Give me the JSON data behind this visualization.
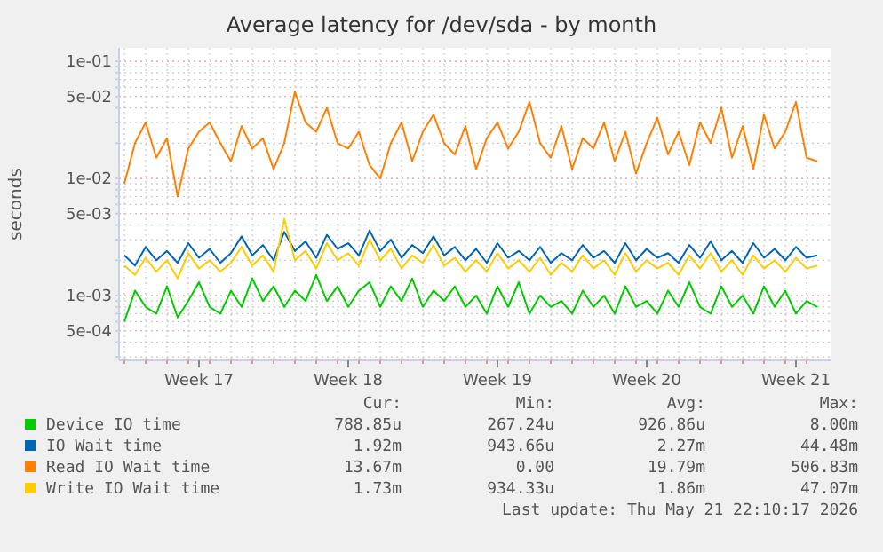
{
  "chart_data": {
    "type": "line",
    "title": "Average latency for /dev/sda - by month",
    "ylabel": "seconds",
    "log": "y",
    "grid": true,
    "legend": "bottom",
    "marker": "none",
    "line_style": "solid",
    "xlim": [
      "2026-04-19T18:00",
      "2026-05-23T04:00"
    ],
    "xticks": [
      {
        "value": "2026-04-20",
        "label": null
      },
      {
        "value": "2026-04-21",
        "label": null
      },
      {
        "value": "2026-04-22",
        "label": null
      },
      {
        "value": "2026-04-23",
        "label": null
      },
      {
        "value": "2026-04-24",
        "label": null
      },
      {
        "value": "2026-04-25",
        "label": null
      },
      {
        "value": "2026-04-26",
        "label": null
      },
      {
        "value": "2026-04-27",
        "label": null
      },
      {
        "value": "2026-04-28",
        "label": null
      },
      {
        "value": "2026-04-29",
        "label": null
      },
      {
        "value": "2026-04-30",
        "label": null
      },
      {
        "value": "2026-05-01",
        "label": null
      },
      {
        "value": "2026-05-02",
        "label": null
      },
      {
        "value": "2026-05-03",
        "label": null
      },
      {
        "value": "2026-05-04",
        "label": null
      },
      {
        "value": "2026-05-05",
        "label": null
      },
      {
        "value": "2026-05-06",
        "label": null
      },
      {
        "value": "2026-05-07",
        "label": null
      },
      {
        "value": "2026-05-08",
        "label": null
      },
      {
        "value": "2026-05-09",
        "label": null
      },
      {
        "value": "2026-05-10",
        "label": null
      },
      {
        "value": "2026-05-11",
        "label": null
      },
      {
        "value": "2026-05-12",
        "label": null
      },
      {
        "value": "2026-05-13",
        "label": null
      },
      {
        "value": "2026-05-14",
        "label": null
      },
      {
        "value": "2026-05-15",
        "label": null
      },
      {
        "value": "2026-05-16",
        "label": null
      },
      {
        "value": "2026-05-17",
        "label": null
      },
      {
        "value": "2026-05-18",
        "label": null
      },
      {
        "value": "2026-05-19",
        "label": null
      },
      {
        "value": "2026-05-20",
        "label": null
      },
      {
        "value": "2026-05-21",
        "label": null
      },
      {
        "value": "2026-05-22",
        "label": null
      },
      {
        "value": "2026-04-23T12:00",
        "label": "Week 17"
      },
      {
        "value": "2026-04-30T12:00",
        "label": "Week 18"
      },
      {
        "value": "2026-05-07T12:00",
        "label": "Week 19"
      },
      {
        "value": "2026-05-14T12:00",
        "label": "Week 20"
      },
      {
        "value": "2026-05-21T12:00",
        "label": "Week 21"
      }
    ],
    "ylim": [
      0.00028,
      0.13
    ],
    "yticks": [
      {
        "value": 0.0003,
        "label": null
      },
      {
        "value": 0.0004,
        "label": null
      },
      {
        "value": 0.0005,
        "label": "5e-04"
      },
      {
        "value": 0.0006,
        "label": null
      },
      {
        "value": 0.0007,
        "label": null
      },
      {
        "value": 0.0008,
        "label": null
      },
      {
        "value": 0.0009,
        "label": null
      },
      {
        "value": 0.001,
        "label": "1e-03"
      },
      {
        "value": 0.002,
        "label": null
      },
      {
        "value": 0.003,
        "label": null
      },
      {
        "value": 0.004,
        "label": null
      },
      {
        "value": 0.005,
        "label": "5e-03"
      },
      {
        "value": 0.006,
        "label": null
      },
      {
        "value": 0.007,
        "label": null
      },
      {
        "value": 0.008,
        "label": null
      },
      {
        "value": 0.009,
        "label": null
      },
      {
        "value": 0.01,
        "label": "1e-02"
      },
      {
        "value": 0.02,
        "label": null
      },
      {
        "value": 0.03,
        "label": null
      },
      {
        "value": 0.04,
        "label": null
      },
      {
        "value": 0.05,
        "label": "5e-02"
      },
      {
        "value": 0.06,
        "label": null
      },
      {
        "value": 0.07,
        "label": null
      },
      {
        "value": 0.08,
        "label": null
      },
      {
        "value": 0.09,
        "label": null
      },
      {
        "value": 0.1,
        "label": "1e-01"
      }
    ],
    "x": [
      "2026-04-20T00:00",
      "2026-04-20T12:00",
      "2026-04-21T00:00",
      "2026-04-21T12:00",
      "2026-04-22T00:00",
      "2026-04-22T12:00",
      "2026-04-23T00:00",
      "2026-04-23T12:00",
      "2026-04-24T00:00",
      "2026-04-24T12:00",
      "2026-04-25T00:00",
      "2026-04-25T12:00",
      "2026-04-26T00:00",
      "2026-04-26T12:00",
      "2026-04-27T00:00",
      "2026-04-27T12:00",
      "2026-04-28T00:00",
      "2026-04-28T12:00",
      "2026-04-29T00:00",
      "2026-04-29T12:00",
      "2026-04-30T00:00",
      "2026-04-30T12:00",
      "2026-05-01T00:00",
      "2026-05-01T12:00",
      "2026-05-02T00:00",
      "2026-05-02T12:00",
      "2026-05-03T00:00",
      "2026-05-03T12:00",
      "2026-05-04T00:00",
      "2026-05-04T12:00",
      "2026-05-05T00:00",
      "2026-05-05T12:00",
      "2026-05-06T00:00",
      "2026-05-06T12:00",
      "2026-05-07T00:00",
      "2026-05-07T12:00",
      "2026-05-08T00:00",
      "2026-05-08T12:00",
      "2026-05-09T00:00",
      "2026-05-09T12:00",
      "2026-05-10T00:00",
      "2026-05-10T12:00",
      "2026-05-11T00:00",
      "2026-05-11T12:00",
      "2026-05-12T00:00",
      "2026-05-12T12:00",
      "2026-05-13T00:00",
      "2026-05-13T12:00",
      "2026-05-14T00:00",
      "2026-05-14T12:00",
      "2026-05-15T00:00",
      "2026-05-15T12:00",
      "2026-05-16T00:00",
      "2026-05-16T12:00",
      "2026-05-17T00:00",
      "2026-05-17T12:00",
      "2026-05-18T00:00",
      "2026-05-18T12:00",
      "2026-05-19T00:00",
      "2026-05-19T12:00",
      "2026-05-20T00:00",
      "2026-05-20T12:00",
      "2026-05-21T00:00",
      "2026-05-21T12:00",
      "2026-05-22T00:00",
      "2026-05-22T12:00"
    ],
    "series": [
      {
        "name": "Device IO time",
        "color": "#00cc00",
        "values": [
          0.0006,
          0.0011,
          0.0008,
          0.0007,
          0.0012,
          0.00065,
          0.0009,
          0.0013,
          0.0008,
          0.0007,
          0.0011,
          0.0008,
          0.0014,
          0.0009,
          0.0012,
          0.0008,
          0.0011,
          0.0009,
          0.0015,
          0.0009,
          0.0012,
          0.0008,
          0.0011,
          0.0013,
          0.0008,
          0.0012,
          0.0009,
          0.0014,
          0.0008,
          0.0011,
          0.0009,
          0.0012,
          0.0008,
          0.001,
          0.0007,
          0.0012,
          0.0008,
          0.0013,
          0.0007,
          0.001,
          0.0008,
          0.0009,
          0.0007,
          0.0011,
          0.0008,
          0.001,
          0.0007,
          0.0012,
          0.0008,
          0.0009,
          0.0007,
          0.0011,
          0.0008,
          0.0013,
          0.0008,
          0.0007,
          0.0012,
          0.0008,
          0.001,
          0.0007,
          0.0012,
          0.0008,
          0.0011,
          0.0007,
          0.0009,
          0.0008
        ]
      },
      {
        "name": "IO Wait time",
        "color": "#0066b3",
        "values": [
          0.0022,
          0.0018,
          0.0026,
          0.002,
          0.0024,
          0.0019,
          0.0028,
          0.0021,
          0.0025,
          0.0019,
          0.0023,
          0.0032,
          0.0022,
          0.0027,
          0.002,
          0.0035,
          0.0024,
          0.0029,
          0.0021,
          0.0033,
          0.0025,
          0.0028,
          0.0022,
          0.0036,
          0.0024,
          0.003,
          0.0021,
          0.0027,
          0.0023,
          0.0032,
          0.0022,
          0.0026,
          0.002,
          0.0025,
          0.0019,
          0.0028,
          0.0021,
          0.0024,
          0.002,
          0.0026,
          0.0019,
          0.0023,
          0.002,
          0.0027,
          0.0021,
          0.0024,
          0.0019,
          0.0028,
          0.002,
          0.0025,
          0.0021,
          0.0023,
          0.0019,
          0.0027,
          0.0021,
          0.0029,
          0.002,
          0.0024,
          0.0019,
          0.0028,
          0.0021,
          0.0025,
          0.002,
          0.0026,
          0.0021,
          0.0022
        ]
      },
      {
        "name": "Read IO Wait time",
        "color": "#ff8000",
        "values": [
          0.009,
          0.02,
          0.03,
          0.015,
          0.022,
          0.007,
          0.018,
          0.025,
          0.03,
          0.02,
          0.014,
          0.028,
          0.018,
          0.022,
          0.012,
          0.02,
          0.055,
          0.03,
          0.025,
          0.04,
          0.02,
          0.018,
          0.025,
          0.013,
          0.01,
          0.02,
          0.03,
          0.014,
          0.025,
          0.035,
          0.02,
          0.016,
          0.028,
          0.012,
          0.022,
          0.03,
          0.018,
          0.025,
          0.045,
          0.02,
          0.015,
          0.028,
          0.012,
          0.022,
          0.018,
          0.03,
          0.014,
          0.025,
          0.011,
          0.02,
          0.033,
          0.016,
          0.025,
          0.013,
          0.03,
          0.02,
          0.04,
          0.015,
          0.028,
          0.012,
          0.035,
          0.018,
          0.025,
          0.045,
          0.015,
          0.014
        ]
      },
      {
        "name": "Write IO Wait time",
        "color": "#ffcc00",
        "values": [
          0.0018,
          0.0015,
          0.0021,
          0.0016,
          0.002,
          0.0014,
          0.0023,
          0.0017,
          0.002,
          0.0016,
          0.0019,
          0.0026,
          0.0018,
          0.0022,
          0.0016,
          0.0045,
          0.002,
          0.0024,
          0.0017,
          0.0028,
          0.002,
          0.0023,
          0.0018,
          0.003,
          0.002,
          0.0025,
          0.0017,
          0.0022,
          0.0019,
          0.0027,
          0.0018,
          0.0021,
          0.0016,
          0.002,
          0.0016,
          0.0023,
          0.0017,
          0.002,
          0.0016,
          0.0021,
          0.0015,
          0.0019,
          0.0016,
          0.0022,
          0.0017,
          0.002,
          0.0015,
          0.0023,
          0.0016,
          0.002,
          0.0017,
          0.0019,
          0.0015,
          0.0022,
          0.0017,
          0.0023,
          0.0016,
          0.002,
          0.0015,
          0.0022,
          0.0017,
          0.002,
          0.0016,
          0.0021,
          0.0017,
          0.0018
        ]
      }
    ],
    "annotations": [
      "Cur:",
      "Min:",
      "Avg:",
      "Max:",
      "788.85u",
      "267.24u",
      "926.86u",
      "8.00m",
      "1.92m",
      "943.66u",
      "2.27m",
      "44.48m",
      "13.67m",
      "0.00",
      "19.79m",
      "506.83m",
      "1.73m",
      "934.33u",
      "1.86m",
      "47.07m",
      "Last update: Thu May 21 22:10:17 2026"
    ]
  }
}
